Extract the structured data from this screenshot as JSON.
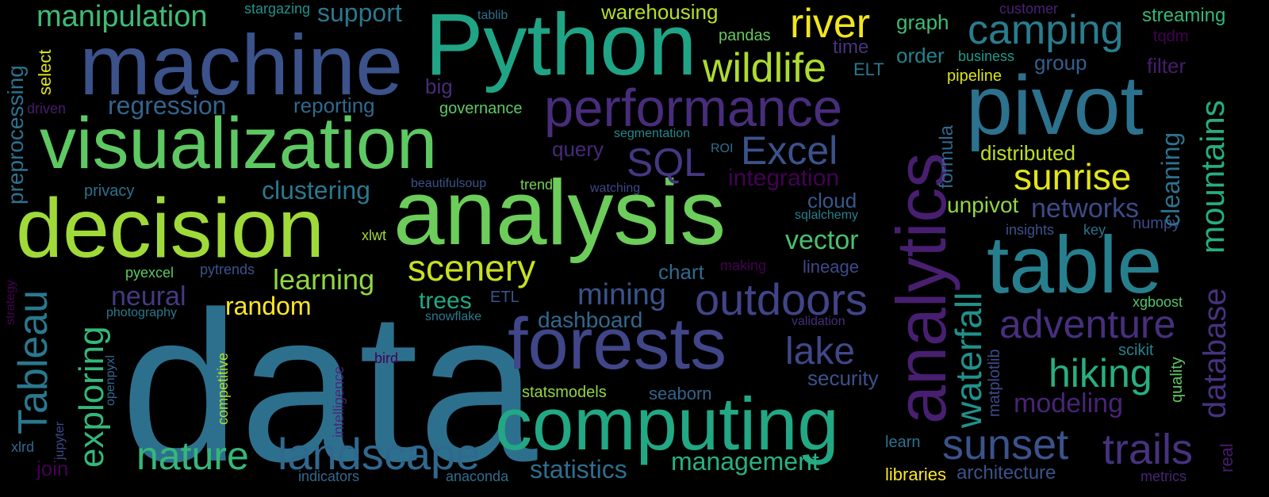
{
  "words": [
    {
      "text": "data",
      "color": "#2d708e"
    },
    {
      "text": "analysis",
      "color": "#6ccd5a"
    },
    {
      "text": "analytics",
      "color": "#481f70"
    },
    {
      "text": "machine",
      "color": "#3b528b"
    },
    {
      "text": "Python",
      "color": "#20a486"
    },
    {
      "text": "visualization",
      "color": "#5ec962"
    },
    {
      "text": "decision",
      "color": "#a0da39"
    },
    {
      "text": "forests",
      "color": "#404688"
    },
    {
      "text": "computing",
      "color": "#22a884"
    },
    {
      "text": "table",
      "color": "#277f8e"
    },
    {
      "text": "pivot",
      "color": "#2c728e"
    },
    {
      "text": "performance",
      "color": "#472d7b"
    },
    {
      "text": "landscape",
      "color": "#31688e"
    },
    {
      "text": "outdoors",
      "color": "#414487"
    },
    {
      "text": "sunset",
      "color": "#3b528b"
    },
    {
      "text": "trails",
      "color": "#46327e"
    },
    {
      "text": "adventure",
      "color": "#472f7d"
    },
    {
      "text": "nature",
      "color": "#35b779"
    },
    {
      "text": "hiking",
      "color": "#29af7f"
    },
    {
      "text": "wildlife",
      "color": "#addc30"
    },
    {
      "text": "river",
      "color": "#f1e51d"
    },
    {
      "text": "camping",
      "color": "#287d8e"
    },
    {
      "text": "manipulation",
      "color": "#3fbc73"
    },
    {
      "text": "Excel",
      "color": "#3b528b"
    },
    {
      "text": "SQL",
      "color": "#453781"
    },
    {
      "text": "sunrise",
      "color": "#e3e418"
    },
    {
      "text": "scenery",
      "color": "#c8e020"
    },
    {
      "text": "regression",
      "color": "#33638d"
    },
    {
      "text": "clustering",
      "color": "#2a788e"
    },
    {
      "text": "learning",
      "color": "#90d743"
    },
    {
      "text": "random",
      "color": "#fde725"
    },
    {
      "text": "mining",
      "color": "#3b528b"
    },
    {
      "text": "lake",
      "color": "#404688"
    },
    {
      "text": "modeling",
      "color": "#482475"
    },
    {
      "text": "management",
      "color": "#2ab07f"
    },
    {
      "text": "networks",
      "color": "#3e4a89"
    },
    {
      "text": "vector",
      "color": "#4ac16d"
    },
    {
      "text": "neural",
      "color": "#443a83"
    },
    {
      "text": "trees",
      "color": "#22a884"
    },
    {
      "text": "statistics",
      "color": "#2e6e8e"
    },
    {
      "text": "integration",
      "color": "#440154"
    },
    {
      "text": "support",
      "color": "#2a788e"
    },
    {
      "text": "order",
      "color": "#26828e"
    },
    {
      "text": "group",
      "color": "#355f8d"
    },
    {
      "text": "warehousing",
      "color": "#b5de2b"
    },
    {
      "text": "distributed",
      "color": "#bddf26"
    },
    {
      "text": "unpivot",
      "color": "#90d743"
    },
    {
      "text": "dashboard",
      "color": "#31688e"
    },
    {
      "text": "security",
      "color": "#3b528b"
    },
    {
      "text": "chart",
      "color": "#30698e"
    },
    {
      "text": "cloud",
      "color": "#38588c"
    },
    {
      "text": "query",
      "color": "#472a7a"
    },
    {
      "text": "streaming",
      "color": "#35b779"
    },
    {
      "text": "graph",
      "color": "#3fbc73"
    },
    {
      "text": "time",
      "color": "#46337e"
    },
    {
      "text": "pandas",
      "color": "#65cb5e"
    },
    {
      "text": "ELT",
      "color": "#2a788e"
    },
    {
      "text": "business",
      "color": "#1f9a8a"
    },
    {
      "text": "pipeline",
      "color": "#dde318"
    },
    {
      "text": "filter",
      "color": "#481b6d"
    },
    {
      "text": "reporting",
      "color": "#31688e"
    },
    {
      "text": "big",
      "color": "#472d7b"
    },
    {
      "text": "governance",
      "color": "#5ec962"
    },
    {
      "text": "segmentation",
      "color": "#24878e"
    },
    {
      "text": "ROI",
      "color": "#2c728e"
    },
    {
      "text": "privacy",
      "color": "#2c728e"
    },
    {
      "text": "beautifulsoup",
      "color": "#3b528b"
    },
    {
      "text": "trend",
      "color": "#7ad151"
    },
    {
      "text": "watching",
      "color": "#404688"
    },
    {
      "text": "sqlalchemy",
      "color": "#277f8e"
    },
    {
      "text": "xlwt",
      "color": "#a2da37"
    },
    {
      "text": "insights",
      "color": "#3b528b"
    },
    {
      "text": "key",
      "color": "#2c728e"
    },
    {
      "text": "numpy",
      "color": "#3e4a89"
    },
    {
      "text": "making",
      "color": "#440154"
    },
    {
      "text": "lineage",
      "color": "#3e4989"
    },
    {
      "text": "pyexcel",
      "color": "#5ec962"
    },
    {
      "text": "pytrends",
      "color": "#3b528b"
    },
    {
      "text": "photography",
      "color": "#2a788e"
    },
    {
      "text": "ETL",
      "color": "#3b528b"
    },
    {
      "text": "snowflake",
      "color": "#2a788e"
    },
    {
      "text": "validation",
      "color": "#472d7b"
    },
    {
      "text": "xgboost",
      "color": "#52c569"
    },
    {
      "text": "scikit",
      "color": "#26828e"
    },
    {
      "text": "statsmodels",
      "color": "#8fd744"
    },
    {
      "text": "seaborn",
      "color": "#33638d"
    },
    {
      "text": "bird",
      "color": "#440154"
    },
    {
      "text": "learn",
      "color": "#2c728e"
    },
    {
      "text": "libraries",
      "color": "#fde725"
    },
    {
      "text": "architecture",
      "color": "#3b528b"
    },
    {
      "text": "metrics",
      "color": "#482475"
    },
    {
      "text": "indicators",
      "color": "#31688e"
    },
    {
      "text": "anaconda",
      "color": "#2e6e8e"
    },
    {
      "text": "join",
      "color": "#440154"
    },
    {
      "text": "xlrd",
      "color": "#31688e"
    },
    {
      "text": "stargazing",
      "color": "#21918c"
    },
    {
      "text": "tablib",
      "color": "#2c728e"
    },
    {
      "text": "customer",
      "color": "#482173"
    },
    {
      "text": "tqdm",
      "color": "#440154"
    },
    {
      "text": "driven",
      "color": "#481b6d"
    },
    {
      "text": "mountains",
      "color": "#27ad81"
    },
    {
      "text": "database",
      "color": "#46327e"
    },
    {
      "text": "waterfall",
      "color": "#21918c"
    },
    {
      "text": "cleaning",
      "color": "#2c728e"
    },
    {
      "text": "formula",
      "color": "#31688e"
    },
    {
      "text": "matplotlib",
      "color": "#3e4a89"
    },
    {
      "text": "quality",
      "color": "#5ec962"
    },
    {
      "text": "real",
      "color": "#481b6d"
    },
    {
      "text": "Tableau",
      "color": "#2a788e"
    },
    {
      "text": "exploring",
      "color": "#35b779"
    },
    {
      "text": "preprocessing",
      "color": "#2c728e"
    },
    {
      "text": "select",
      "color": "#dde318"
    },
    {
      "text": "strategy",
      "color": "#440154"
    },
    {
      "text": "openpyxl",
      "color": "#31688e"
    },
    {
      "text": "jupyter",
      "color": "#3e4a89"
    },
    {
      "text": "competitive",
      "color": "#b5de2b"
    },
    {
      "text": "intelligence",
      "color": "#482878"
    }
  ]
}
